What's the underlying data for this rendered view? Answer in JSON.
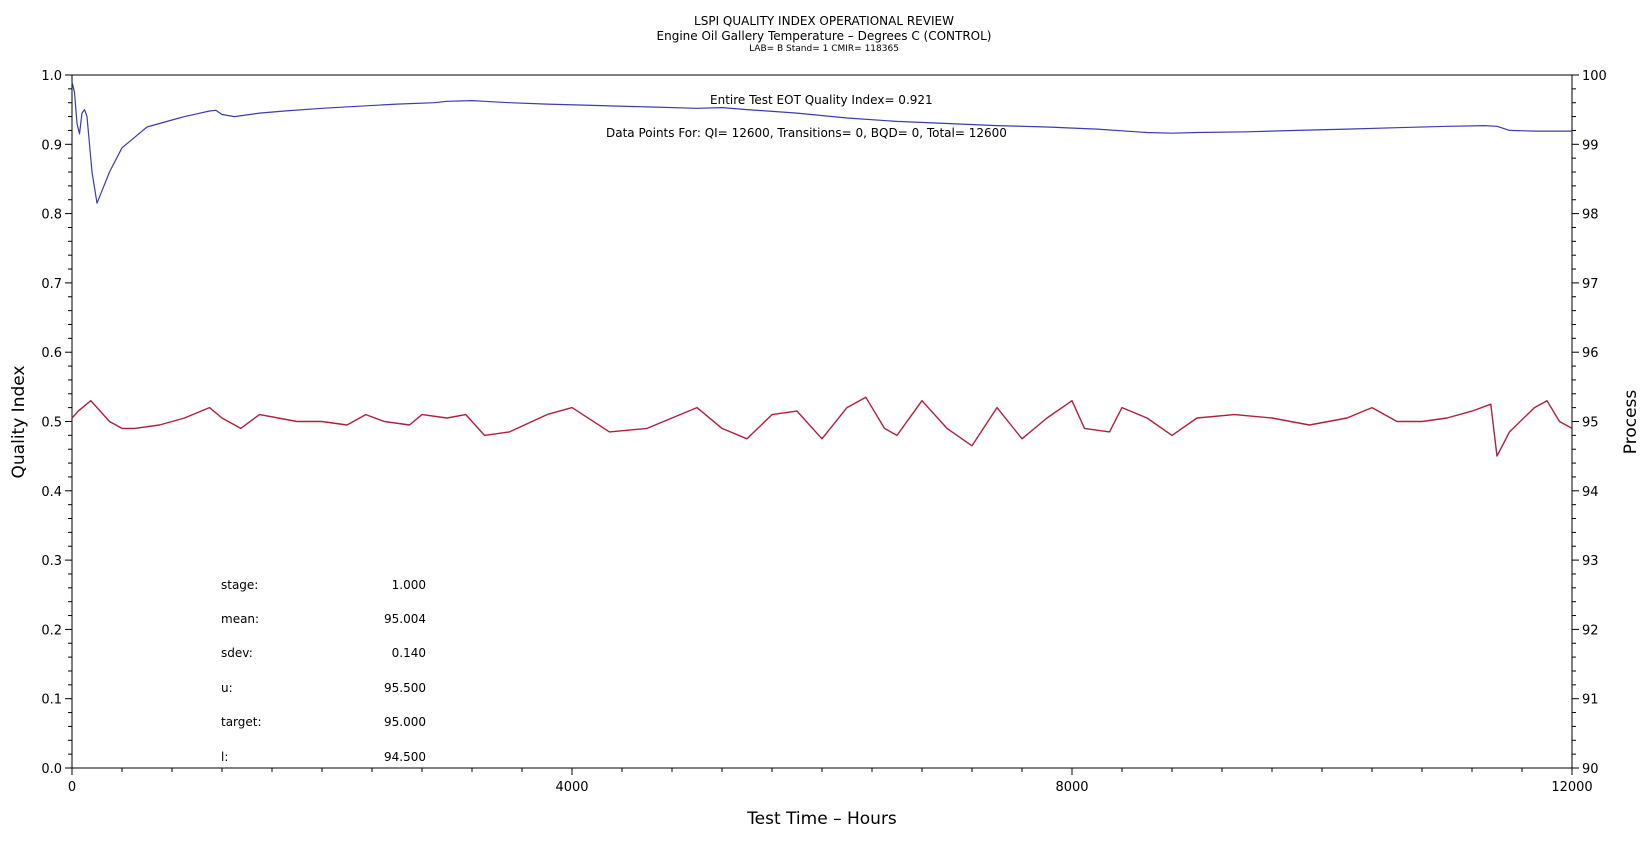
{
  "header": {
    "title": "LSPI QUALITY INDEX OPERATIONAL REVIEW",
    "subtitle": "Engine Oil Gallery Temperature – Degrees C (CONTROL)",
    "info": "LAB= B Stand= 1 CMIR= 118365"
  },
  "annotations": {
    "quality_index": "Entire Test EOT Quality Index=   0.921",
    "data_points": "Data Points For: QI= 12600, Transitions=     0, BQD=     0, Total= 12600"
  },
  "stats": [
    {
      "label": "stage:",
      "value": "1.000"
    },
    {
      "label": "mean:",
      "value": "95.004"
    },
    {
      "label": "sdev:",
      "value": "0.140"
    },
    {
      "label": "u:",
      "value": "95.500"
    },
    {
      "label": "target:",
      "value": "95.000"
    },
    {
      "label": "l:",
      "value": "94.500"
    }
  ],
  "chart_data": {
    "type": "line",
    "xlabel": "Test Time – Hours",
    "ylabel": "Quality Index",
    "y2label": "Process",
    "xlim": [
      0,
      12000
    ],
    "ylim": [
      0.0,
      1.0
    ],
    "y2lim": [
      90,
      100
    ],
    "x_ticks": [
      0,
      4000,
      8000,
      12000
    ],
    "y_ticks": [
      "0.0",
      "0.1",
      "0.2",
      "0.3",
      "0.4",
      "0.5",
      "0.6",
      "0.7",
      "0.8",
      "0.9",
      "1.0"
    ],
    "y2_ticks": [
      "90",
      "91",
      "92",
      "93",
      "94",
      "95",
      "96",
      "97",
      "98",
      "99",
      "100"
    ],
    "series": [
      {
        "axis": "left",
        "color": "#3b3bb3",
        "x": [
          0,
          20,
          40,
          60,
          80,
          100,
          120,
          160,
          200,
          300,
          400,
          500,
          600,
          700,
          800,
          900,
          1000,
          1100,
          1150,
          1200,
          1300,
          1500,
          1700,
          2000,
          2300,
          2600,
          2900,
          3000,
          3200,
          3300,
          3500,
          3800,
          4200,
          4600,
          5000,
          5200,
          5400,
          5800,
          6200,
          6600,
          7000,
          7400,
          7800,
          8200,
          8600,
          8800,
          9000,
          9400,
          9800,
          10200,
          10600,
          11000,
          11300,
          11400,
          11500,
          11700,
          12000
        ],
        "y": [
          0.99,
          0.975,
          0.93,
          0.915,
          0.945,
          0.95,
          0.94,
          0.86,
          0.815,
          0.86,
          0.895,
          0.91,
          0.925,
          0.93,
          0.935,
          0.94,
          0.944,
          0.948,
          0.949,
          0.943,
          0.94,
          0.945,
          0.948,
          0.952,
          0.955,
          0.958,
          0.96,
          0.962,
          0.963,
          0.962,
          0.96,
          0.958,
          0.956,
          0.954,
          0.952,
          0.953,
          0.95,
          0.945,
          0.938,
          0.933,
          0.93,
          0.927,
          0.925,
          0.922,
          0.917,
          0.916,
          0.917,
          0.918,
          0.92,
          0.922,
          0.924,
          0.926,
          0.927,
          0.926,
          0.92,
          0.919,
          0.919
        ]
      },
      {
        "axis": "right",
        "color": "#b0203a",
        "x": [
          0,
          50,
          150,
          300,
          400,
          500,
          700,
          900,
          1100,
          1200,
          1350,
          1500,
          1650,
          1800,
          2000,
          2200,
          2350,
          2500,
          2700,
          2800,
          3000,
          3150,
          3300,
          3500,
          3800,
          4000,
          4300,
          4600,
          4800,
          5000,
          5200,
          5400,
          5600,
          5800,
          6000,
          6200,
          6350,
          6500,
          6600,
          6800,
          7000,
          7200,
          7400,
          7600,
          7800,
          8000,
          8100,
          8300,
          8400,
          8600,
          8800,
          9000,
          9300,
          9600,
          9900,
          10200,
          10400,
          10600,
          10800,
          11000,
          11200,
          11350,
          11400,
          11500,
          11700,
          11800,
          11900,
          12000
        ],
        "y": [
          95.05,
          95.15,
          95.3,
          95.0,
          94.9,
          94.9,
          94.95,
          95.05,
          95.2,
          95.05,
          94.9,
          95.1,
          95.05,
          95.0,
          95.0,
          94.95,
          95.1,
          95.0,
          94.95,
          95.1,
          95.05,
          95.1,
          94.8,
          94.85,
          95.1,
          95.2,
          94.85,
          94.9,
          95.05,
          95.2,
          94.9,
          94.75,
          95.1,
          95.15,
          94.75,
          95.2,
          95.35,
          94.9,
          94.8,
          95.3,
          94.9,
          94.65,
          95.2,
          94.75,
          95.05,
          95.3,
          94.9,
          94.85,
          95.2,
          95.05,
          94.8,
          95.05,
          95.1,
          95.05,
          94.95,
          95.05,
          95.2,
          95.0,
          95.0,
          95.05,
          95.15,
          95.25,
          94.5,
          94.85,
          95.2,
          95.3,
          95.0,
          94.9
        ]
      }
    ]
  }
}
